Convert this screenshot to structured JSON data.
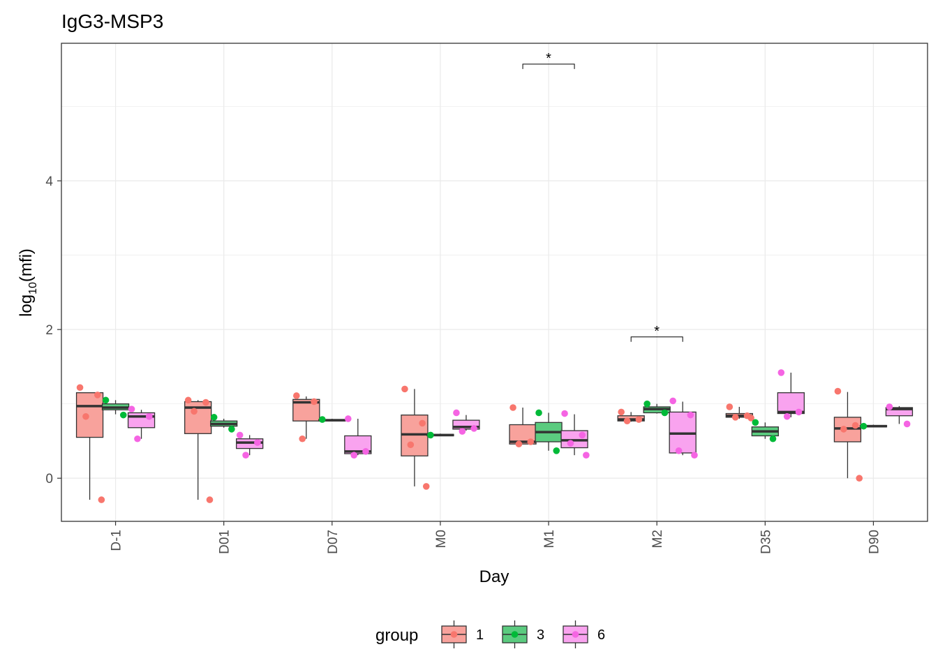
{
  "chart_data": {
    "type": "boxplot",
    "title": "IgG3-MSP3",
    "xlabel": "Day",
    "ylabel_base": "log",
    "ylabel_sub": "10",
    "ylabel_arg": "(mfi)",
    "ylim": [
      -0.58,
      5.85
    ],
    "yticks": [
      0,
      2,
      4
    ],
    "grid": true,
    "legend": {
      "title": "group",
      "position": "bottom"
    },
    "categories": [
      "D-1",
      "D01",
      "D07",
      "M0",
      "M1",
      "M2",
      "D35",
      "D90"
    ],
    "groups": [
      {
        "name": "1",
        "fill": "#F8A29C",
        "point": "#F8766D"
      },
      {
        "name": "3",
        "fill": "#5BCB7F",
        "point": "#00BA38"
      },
      {
        "name": "6",
        "fill": "#F9A3EF",
        "point": "#F564E3"
      }
    ],
    "boxes": [
      {
        "day": "D-1",
        "group": "1",
        "lower": -0.29,
        "q1": 0.55,
        "median": 0.97,
        "q3": 1.15,
        "upper": 1.15,
        "points": [
          1.22,
          1.12,
          0.83,
          -0.29
        ]
      },
      {
        "day": "D-1",
        "group": "3",
        "lower": 0.86,
        "q1": 0.92,
        "median": 0.95,
        "q3": 1.0,
        "upper": 1.05,
        "points": [
          1.05,
          0.85
        ]
      },
      {
        "day": "D-1",
        "group": "6",
        "lower": 0.53,
        "q1": 0.68,
        "median": 0.83,
        "q3": 0.88,
        "upper": 0.92,
        "points": [
          0.93,
          0.83,
          0.53
        ]
      },
      {
        "day": "D01",
        "group": "1",
        "lower": -0.29,
        "q1": 0.6,
        "median": 0.95,
        "q3": 1.03,
        "upper": 1.05,
        "points": [
          1.05,
          1.02,
          0.9,
          -0.29
        ]
      },
      {
        "day": "D01",
        "group": "3",
        "lower": 0.68,
        "q1": 0.7,
        "median": 0.73,
        "q3": 0.77,
        "upper": 0.8,
        "points": [
          0.82,
          0.66
        ]
      },
      {
        "day": "D01",
        "group": "6",
        "lower": 0.31,
        "q1": 0.4,
        "median": 0.48,
        "q3": 0.53,
        "upper": 0.58,
        "points": [
          0.58,
          0.48,
          0.31
        ]
      },
      {
        "day": "D07",
        "group": "1",
        "lower": 0.53,
        "q1": 0.77,
        "median": 1.02,
        "q3": 1.06,
        "upper": 1.1,
        "points": [
          1.11,
          1.03,
          0.53
        ]
      },
      {
        "day": "D07",
        "group": "3",
        "lower": 0.77,
        "q1": 0.77,
        "median": 0.78,
        "q3": 0.79,
        "upper": 0.8,
        "points": [
          0.79
        ]
      },
      {
        "day": "D07",
        "group": "6",
        "lower": 0.31,
        "q1": 0.33,
        "median": 0.36,
        "q3": 0.57,
        "upper": 0.8,
        "points": [
          0.8,
          0.36,
          0.31
        ]
      },
      {
        "day": "M0",
        "group": "1",
        "lower": -0.11,
        "q1": 0.3,
        "median": 0.59,
        "q3": 0.85,
        "upper": 1.2,
        "points": [
          1.2,
          0.74,
          0.45,
          -0.11
        ]
      },
      {
        "day": "M0",
        "group": "3",
        "lower": 0.57,
        "q1": 0.57,
        "median": 0.58,
        "q3": 0.59,
        "upper": 0.6,
        "points": [
          0.58
        ]
      },
      {
        "day": "M0",
        "group": "6",
        "lower": 0.64,
        "q1": 0.66,
        "median": 0.69,
        "q3": 0.78,
        "upper": 0.85,
        "points": [
          0.88,
          0.67,
          0.63
        ]
      },
      {
        "day": "M1",
        "group": "1",
        "lower": 0.46,
        "q1": 0.46,
        "median": 0.49,
        "q3": 0.72,
        "upper": 0.95,
        "points": [
          0.95,
          0.49,
          0.46
        ]
      },
      {
        "day": "M1",
        "group": "3",
        "lower": 0.37,
        "q1": 0.49,
        "median": 0.62,
        "q3": 0.75,
        "upper": 0.88,
        "points": [
          0.88,
          0.37
        ]
      },
      {
        "day": "M1",
        "group": "6",
        "lower": 0.31,
        "q1": 0.41,
        "median": 0.51,
        "q3": 0.64,
        "upper": 0.86,
        "points": [
          0.87,
          0.58,
          0.47,
          0.31
        ]
      },
      {
        "day": "M2",
        "group": "1",
        "lower": 0.76,
        "q1": 0.77,
        "median": 0.79,
        "q3": 0.84,
        "upper": 0.89,
        "points": [
          0.89,
          0.79,
          0.77
        ]
      },
      {
        "day": "M2",
        "group": "3",
        "lower": 0.87,
        "q1": 0.88,
        "median": 0.93,
        "q3": 0.96,
        "upper": 1.0,
        "points": [
          1.0,
          0.88
        ]
      },
      {
        "day": "M2",
        "group": "6",
        "lower": 0.31,
        "q1": 0.34,
        "median": 0.6,
        "q3": 0.89,
        "upper": 1.03,
        "points": [
          1.04,
          0.85,
          0.37,
          0.31
        ]
      },
      {
        "day": "D35",
        "group": "1",
        "lower": 0.8,
        "q1": 0.82,
        "median": 0.84,
        "q3": 0.87,
        "upper": 0.96,
        "points": [
          0.96,
          0.84,
          0.82,
          0.81
        ]
      },
      {
        "day": "D35",
        "group": "3",
        "lower": 0.53,
        "q1": 0.57,
        "median": 0.63,
        "q3": 0.69,
        "upper": 0.75,
        "points": [
          0.75,
          0.53
        ]
      },
      {
        "day": "D35",
        "group": "6",
        "lower": 0.82,
        "q1": 0.87,
        "median": 0.89,
        "q3": 1.15,
        "upper": 1.42,
        "points": [
          1.42,
          0.89,
          0.83
        ]
      },
      {
        "day": "D90",
        "group": "1",
        "lower": 0.0,
        "q1": 0.49,
        "median": 0.67,
        "q3": 0.82,
        "upper": 1.16,
        "points": [
          1.17,
          0.71,
          0.66,
          0.0
        ]
      },
      {
        "day": "D90",
        "group": "3",
        "lower": 0.69,
        "q1": 0.69,
        "median": 0.7,
        "q3": 0.71,
        "upper": 0.72,
        "points": [
          0.7
        ]
      },
      {
        "day": "D90",
        "group": "6",
        "lower": 0.73,
        "q1": 0.84,
        "median": 0.93,
        "q3": 0.95,
        "upper": 0.97,
        "points": [
          0.96,
          0.73
        ]
      }
    ],
    "significance": [
      {
        "day": "M1",
        "from_group": "1",
        "to_group": "6",
        "y": 5.57,
        "label": "*"
      },
      {
        "day": "M2",
        "from_group": "1",
        "to_group": "6",
        "y": 1.9,
        "label": "*"
      }
    ]
  }
}
